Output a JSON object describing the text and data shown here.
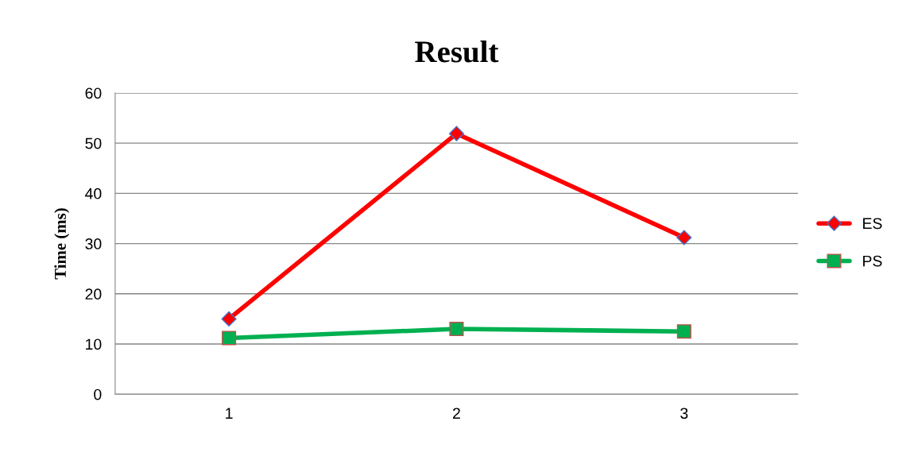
{
  "chart_data": {
    "type": "line",
    "title": "Result",
    "ylabel": "Time (ms)",
    "categories": [
      "1",
      "2",
      "3"
    ],
    "series": [
      {
        "name": "ES",
        "color": "#ff0000",
        "marker": "diamond",
        "values": [
          15.0,
          51.9,
          31.2
        ]
      },
      {
        "name": "PS",
        "color": "#00b050",
        "marker": "square",
        "values": [
          11.2,
          13.0,
          12.5
        ]
      }
    ],
    "ylim": [
      0,
      60
    ],
    "yticks": [
      0,
      10,
      20,
      30,
      40,
      50,
      60
    ],
    "grid": "y",
    "legend": "right"
  }
}
